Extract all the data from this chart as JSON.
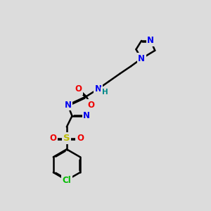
{
  "bg_color": "#dcdcdc",
  "bond_color": "#000000",
  "bond_width": 1.8,
  "dbo": 0.055,
  "atom_colors": {
    "N": "#0000ee",
    "O": "#ee0000",
    "S": "#bbbb00",
    "Cl": "#00bb00",
    "H": "#008888",
    "C": "#000000"
  },
  "font_size": 8.5,
  "fig_bg": "#dcdcdc"
}
